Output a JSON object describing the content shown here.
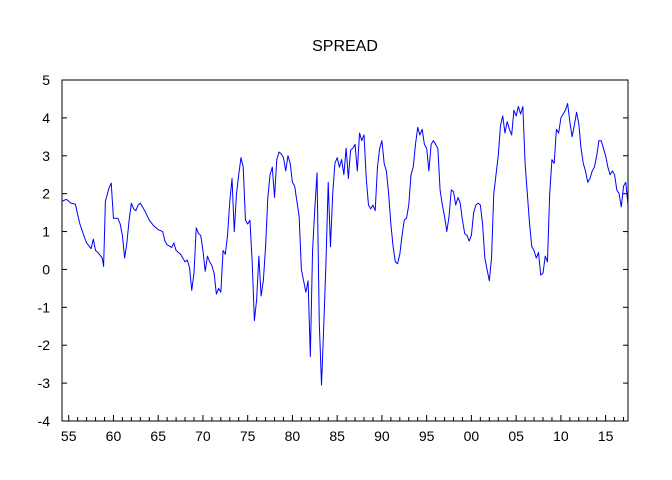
{
  "chart_data": {
    "type": "line",
    "title": "SPREAD",
    "xlabel": "",
    "ylabel": "",
    "xlim": [
      1954.25,
      2017.5
    ],
    "ylim": [
      -4,
      5
    ],
    "y_ticks": [
      -4,
      -3,
      -2,
      -1,
      0,
      1,
      2,
      3,
      4,
      5
    ],
    "x_tick_labels": [
      {
        "year": 1955,
        "label": "55"
      },
      {
        "year": 1960,
        "label": "60"
      },
      {
        "year": 1965,
        "label": "65"
      },
      {
        "year": 1970,
        "label": "70"
      },
      {
        "year": 1975,
        "label": "75"
      },
      {
        "year": 1980,
        "label": "80"
      },
      {
        "year": 1985,
        "label": "85"
      },
      {
        "year": 1990,
        "label": "90"
      },
      {
        "year": 1995,
        "label": "95"
      },
      {
        "year": 2000,
        "label": "00"
      },
      {
        "year": 2005,
        "label": "05"
      },
      {
        "year": 2010,
        "label": "10"
      },
      {
        "year": 2015,
        "label": "15"
      }
    ],
    "grid": false,
    "colors": {
      "series": "#0000ff",
      "axis": "#000000"
    },
    "series": [
      {
        "points": [
          [
            1954.25,
            1.8
          ],
          [
            1954.75,
            1.85
          ],
          [
            1955.25,
            1.75
          ],
          [
            1955.75,
            1.72
          ],
          [
            1956.0,
            1.45
          ],
          [
            1956.25,
            1.2
          ],
          [
            1956.75,
            0.85
          ],
          [
            1957.0,
            0.7
          ],
          [
            1957.5,
            0.55
          ],
          [
            1957.75,
            0.8
          ],
          [
            1958.0,
            0.5
          ],
          [
            1958.25,
            0.45
          ],
          [
            1958.5,
            0.38
          ],
          [
            1958.75,
            0.3
          ],
          [
            1958.9,
            0.08
          ],
          [
            1959.1,
            1.8
          ],
          [
            1959.5,
            2.15
          ],
          [
            1959.75,
            2.28
          ],
          [
            1960.0,
            1.35
          ],
          [
            1960.5,
            1.35
          ],
          [
            1960.75,
            1.2
          ],
          [
            1961.0,
            0.9
          ],
          [
            1961.25,
            0.3
          ],
          [
            1961.5,
            0.7
          ],
          [
            1961.75,
            1.3
          ],
          [
            1962.0,
            1.75
          ],
          [
            1962.25,
            1.6
          ],
          [
            1962.5,
            1.55
          ],
          [
            1962.75,
            1.7
          ],
          [
            1963.0,
            1.75
          ],
          [
            1963.5,
            1.55
          ],
          [
            1964.0,
            1.3
          ],
          [
            1964.5,
            1.15
          ],
          [
            1965.0,
            1.05
          ],
          [
            1965.5,
            1.0
          ],
          [
            1965.75,
            0.75
          ],
          [
            1966.0,
            0.65
          ],
          [
            1966.5,
            0.58
          ],
          [
            1966.75,
            0.7
          ],
          [
            1967.0,
            0.5
          ],
          [
            1967.5,
            0.4
          ],
          [
            1967.75,
            0.3
          ],
          [
            1968.0,
            0.2
          ],
          [
            1968.25,
            0.25
          ],
          [
            1968.5,
            0.05
          ],
          [
            1968.75,
            -0.55
          ],
          [
            1969.0,
            -0.1
          ],
          [
            1969.25,
            1.1
          ],
          [
            1969.5,
            0.95
          ],
          [
            1969.75,
            0.9
          ],
          [
            1970.0,
            0.5
          ],
          [
            1970.25,
            -0.05
          ],
          [
            1970.5,
            0.35
          ],
          [
            1970.75,
            0.2
          ],
          [
            1971.0,
            0.1
          ],
          [
            1971.25,
            -0.1
          ],
          [
            1971.5,
            -0.65
          ],
          [
            1971.75,
            -0.5
          ],
          [
            1972.0,
            -0.6
          ],
          [
            1972.25,
            0.5
          ],
          [
            1972.5,
            0.4
          ],
          [
            1972.75,
            0.9
          ],
          [
            1973.0,
            1.8
          ],
          [
            1973.25,
            2.4
          ],
          [
            1973.5,
            1.0
          ],
          [
            1973.75,
            2.0
          ],
          [
            1974.0,
            2.5
          ],
          [
            1974.25,
            2.95
          ],
          [
            1974.5,
            2.7
          ],
          [
            1974.75,
            1.3
          ],
          [
            1975.0,
            1.2
          ],
          [
            1975.25,
            1.3
          ],
          [
            1975.5,
            0.2
          ],
          [
            1975.75,
            -1.35
          ],
          [
            1976.0,
            -0.8
          ],
          [
            1976.25,
            0.35
          ],
          [
            1976.5,
            -0.7
          ],
          [
            1976.75,
            -0.3
          ],
          [
            1977.0,
            0.6
          ],
          [
            1977.25,
            1.9
          ],
          [
            1977.5,
            2.5
          ],
          [
            1977.75,
            2.7
          ],
          [
            1978.0,
            1.9
          ],
          [
            1978.25,
            2.9
          ],
          [
            1978.5,
            3.1
          ],
          [
            1978.75,
            3.05
          ],
          [
            1979.0,
            2.95
          ],
          [
            1979.25,
            2.6
          ],
          [
            1979.5,
            3.0
          ],
          [
            1979.75,
            2.8
          ],
          [
            1980.0,
            2.3
          ],
          [
            1980.25,
            2.2
          ],
          [
            1980.5,
            1.8
          ],
          [
            1980.75,
            1.4
          ],
          [
            1981.0,
            0.0
          ],
          [
            1981.25,
            -0.3
          ],
          [
            1981.5,
            -0.6
          ],
          [
            1981.75,
            -0.3
          ],
          [
            1982.0,
            -2.3
          ],
          [
            1982.25,
            0.5
          ],
          [
            1982.5,
            1.6
          ],
          [
            1982.75,
            2.55
          ],
          [
            1983.0,
            -1.4
          ],
          [
            1983.25,
            -3.05
          ],
          [
            1983.5,
            -1.5
          ],
          [
            1983.75,
            0.2
          ],
          [
            1984.0,
            2.3
          ],
          [
            1984.25,
            0.6
          ],
          [
            1984.5,
            2.0
          ],
          [
            1984.75,
            2.8
          ],
          [
            1985.0,
            2.95
          ],
          [
            1985.25,
            2.7
          ],
          [
            1985.5,
            2.9
          ],
          [
            1985.75,
            2.5
          ],
          [
            1986.0,
            3.2
          ],
          [
            1986.25,
            2.4
          ],
          [
            1986.5,
            3.15
          ],
          [
            1986.75,
            3.2
          ],
          [
            1987.0,
            3.3
          ],
          [
            1987.25,
            2.6
          ],
          [
            1987.5,
            3.6
          ],
          [
            1987.75,
            3.4
          ],
          [
            1988.0,
            3.55
          ],
          [
            1988.25,
            2.4
          ],
          [
            1988.5,
            1.7
          ],
          [
            1988.75,
            1.6
          ],
          [
            1989.0,
            1.7
          ],
          [
            1989.25,
            1.55
          ],
          [
            1989.5,
            2.7
          ],
          [
            1989.75,
            3.2
          ],
          [
            1990.0,
            3.4
          ],
          [
            1990.25,
            2.8
          ],
          [
            1990.5,
            2.6
          ],
          [
            1990.75,
            2.0
          ],
          [
            1991.0,
            1.2
          ],
          [
            1991.25,
            0.6
          ],
          [
            1991.5,
            0.2
          ],
          [
            1991.75,
            0.15
          ],
          [
            1992.0,
            0.4
          ],
          [
            1992.25,
            0.9
          ],
          [
            1992.5,
            1.3
          ],
          [
            1992.75,
            1.35
          ],
          [
            1993.0,
            1.7
          ],
          [
            1993.25,
            2.5
          ],
          [
            1993.5,
            2.7
          ],
          [
            1993.75,
            3.3
          ],
          [
            1994.0,
            3.75
          ],
          [
            1994.25,
            3.55
          ],
          [
            1994.5,
            3.7
          ],
          [
            1994.75,
            3.3
          ],
          [
            1995.0,
            3.2
          ],
          [
            1995.25,
            2.6
          ],
          [
            1995.5,
            3.3
          ],
          [
            1995.75,
            3.4
          ],
          [
            1996.0,
            3.3
          ],
          [
            1996.25,
            3.2
          ],
          [
            1996.5,
            2.1
          ],
          [
            1996.75,
            1.7
          ],
          [
            1997.0,
            1.4
          ],
          [
            1997.25,
            1.0
          ],
          [
            1997.5,
            1.4
          ],
          [
            1997.75,
            2.1
          ],
          [
            1998.0,
            2.05
          ],
          [
            1998.25,
            1.7
          ],
          [
            1998.5,
            1.9
          ],
          [
            1998.75,
            1.75
          ],
          [
            1999.0,
            1.3
          ],
          [
            1999.25,
            0.95
          ],
          [
            1999.5,
            0.9
          ],
          [
            1999.75,
            0.75
          ],
          [
            2000.0,
            0.9
          ],
          [
            2000.25,
            1.5
          ],
          [
            2000.5,
            1.7
          ],
          [
            2000.75,
            1.75
          ],
          [
            2001.0,
            1.7
          ],
          [
            2001.25,
            1.2
          ],
          [
            2001.5,
            0.3
          ],
          [
            2001.75,
            0.0
          ],
          [
            2002.0,
            -0.3
          ],
          [
            2002.25,
            0.3
          ],
          [
            2002.5,
            2.0
          ],
          [
            2002.75,
            2.5
          ],
          [
            2003.0,
            3.0
          ],
          [
            2003.25,
            3.8
          ],
          [
            2003.5,
            4.05
          ],
          [
            2003.75,
            3.6
          ],
          [
            2004.0,
            3.9
          ],
          [
            2004.25,
            3.7
          ],
          [
            2004.5,
            3.55
          ],
          [
            2004.75,
            4.2
          ],
          [
            2005.0,
            4.05
          ],
          [
            2005.25,
            4.3
          ],
          [
            2005.5,
            4.1
          ],
          [
            2005.75,
            4.3
          ],
          [
            2006.0,
            2.8
          ],
          [
            2006.25,
            2.0
          ],
          [
            2006.5,
            1.2
          ],
          [
            2006.75,
            0.6
          ],
          [
            2007.0,
            0.5
          ],
          [
            2007.25,
            0.3
          ],
          [
            2007.5,
            0.45
          ],
          [
            2007.75,
            -0.15
          ],
          [
            2008.0,
            -0.1
          ],
          [
            2008.25,
            0.35
          ],
          [
            2008.5,
            0.2
          ],
          [
            2008.75,
            2.0
          ],
          [
            2009.0,
            2.9
          ],
          [
            2009.25,
            2.8
          ],
          [
            2009.5,
            3.7
          ],
          [
            2009.75,
            3.6
          ],
          [
            2010.0,
            4.0
          ],
          [
            2010.25,
            4.1
          ],
          [
            2010.5,
            4.2
          ],
          [
            2010.75,
            4.38
          ],
          [
            2011.0,
            3.9
          ],
          [
            2011.25,
            3.5
          ],
          [
            2011.5,
            3.8
          ],
          [
            2011.75,
            4.15
          ],
          [
            2012.0,
            3.85
          ],
          [
            2012.25,
            3.2
          ],
          [
            2012.5,
            2.8
          ],
          [
            2012.75,
            2.6
          ],
          [
            2013.0,
            2.3
          ],
          [
            2013.25,
            2.4
          ],
          [
            2013.5,
            2.6
          ],
          [
            2013.75,
            2.7
          ],
          [
            2014.0,
            3.0
          ],
          [
            2014.25,
            3.4
          ],
          [
            2014.5,
            3.4
          ],
          [
            2014.75,
            3.2
          ],
          [
            2015.0,
            3.0
          ],
          [
            2015.25,
            2.7
          ],
          [
            2015.5,
            2.5
          ],
          [
            2015.75,
            2.6
          ],
          [
            2016.0,
            2.5
          ],
          [
            2016.25,
            2.1
          ],
          [
            2016.5,
            2.0
          ],
          [
            2016.75,
            1.65
          ],
          [
            2017.0,
            2.2
          ],
          [
            2017.25,
            2.3
          ],
          [
            2017.5,
            1.7
          ]
        ]
      }
    ]
  }
}
